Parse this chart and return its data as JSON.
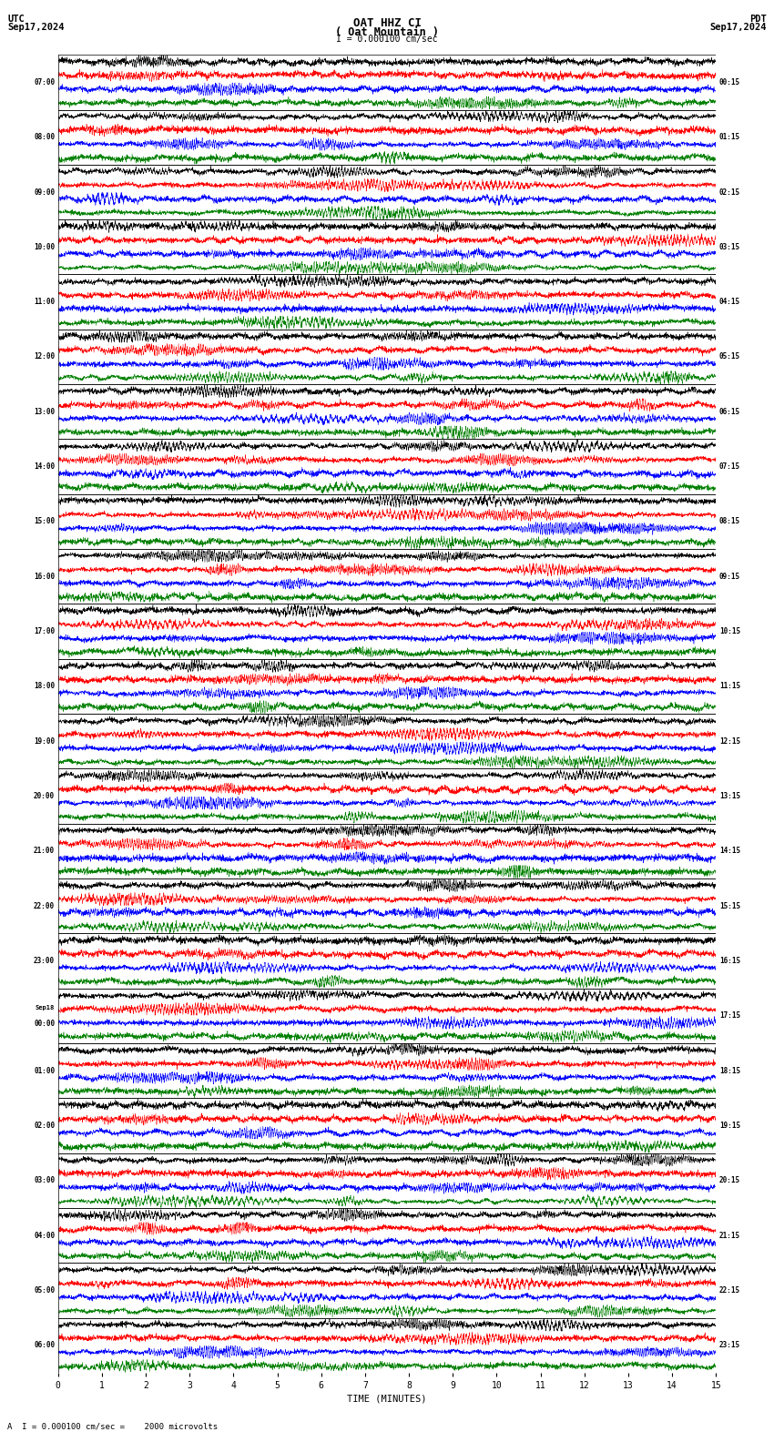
{
  "title_line1": "OAT HHZ CI",
  "title_line2": "( Oat Mountain )",
  "scale_label": "= 0.000100 cm/sec",
  "utc_label": "UTC",
  "utc_date": "Sep17,2024",
  "pdt_label": "PDT",
  "pdt_date": "Sep17,2024",
  "footer_label": "A  I = 0.000100 cm/sec =    2000 microvolts",
  "xlabel": "TIME (MINUTES)",
  "xlim": [
    0,
    15
  ],
  "xticks": [
    0,
    1,
    2,
    3,
    4,
    5,
    6,
    7,
    8,
    9,
    10,
    11,
    12,
    13,
    14,
    15
  ],
  "background_color": "#ffffff",
  "trace_colors": [
    "#000000",
    "#ff0000",
    "#0000ff",
    "#008000"
  ],
  "num_rows": 24,
  "left_labels": [
    "07:00",
    "08:00",
    "09:00",
    "10:00",
    "11:00",
    "12:00",
    "13:00",
    "14:00",
    "15:00",
    "16:00",
    "17:00",
    "18:00",
    "19:00",
    "20:00",
    "21:00",
    "22:00",
    "23:00",
    "Sep18\n00:00",
    "01:00",
    "02:00",
    "03:00",
    "04:00",
    "05:00",
    "06:00"
  ],
  "right_labels": [
    "00:15",
    "01:15",
    "02:15",
    "03:15",
    "04:15",
    "05:15",
    "06:15",
    "07:15",
    "08:15",
    "09:15",
    "10:15",
    "11:15",
    "12:15",
    "13:15",
    "14:15",
    "15:15",
    "16:15",
    "17:15",
    "18:15",
    "19:15",
    "20:15",
    "21:15",
    "22:15",
    "23:15"
  ],
  "fig_width": 8.5,
  "fig_height": 15.84,
  "dpi": 100
}
